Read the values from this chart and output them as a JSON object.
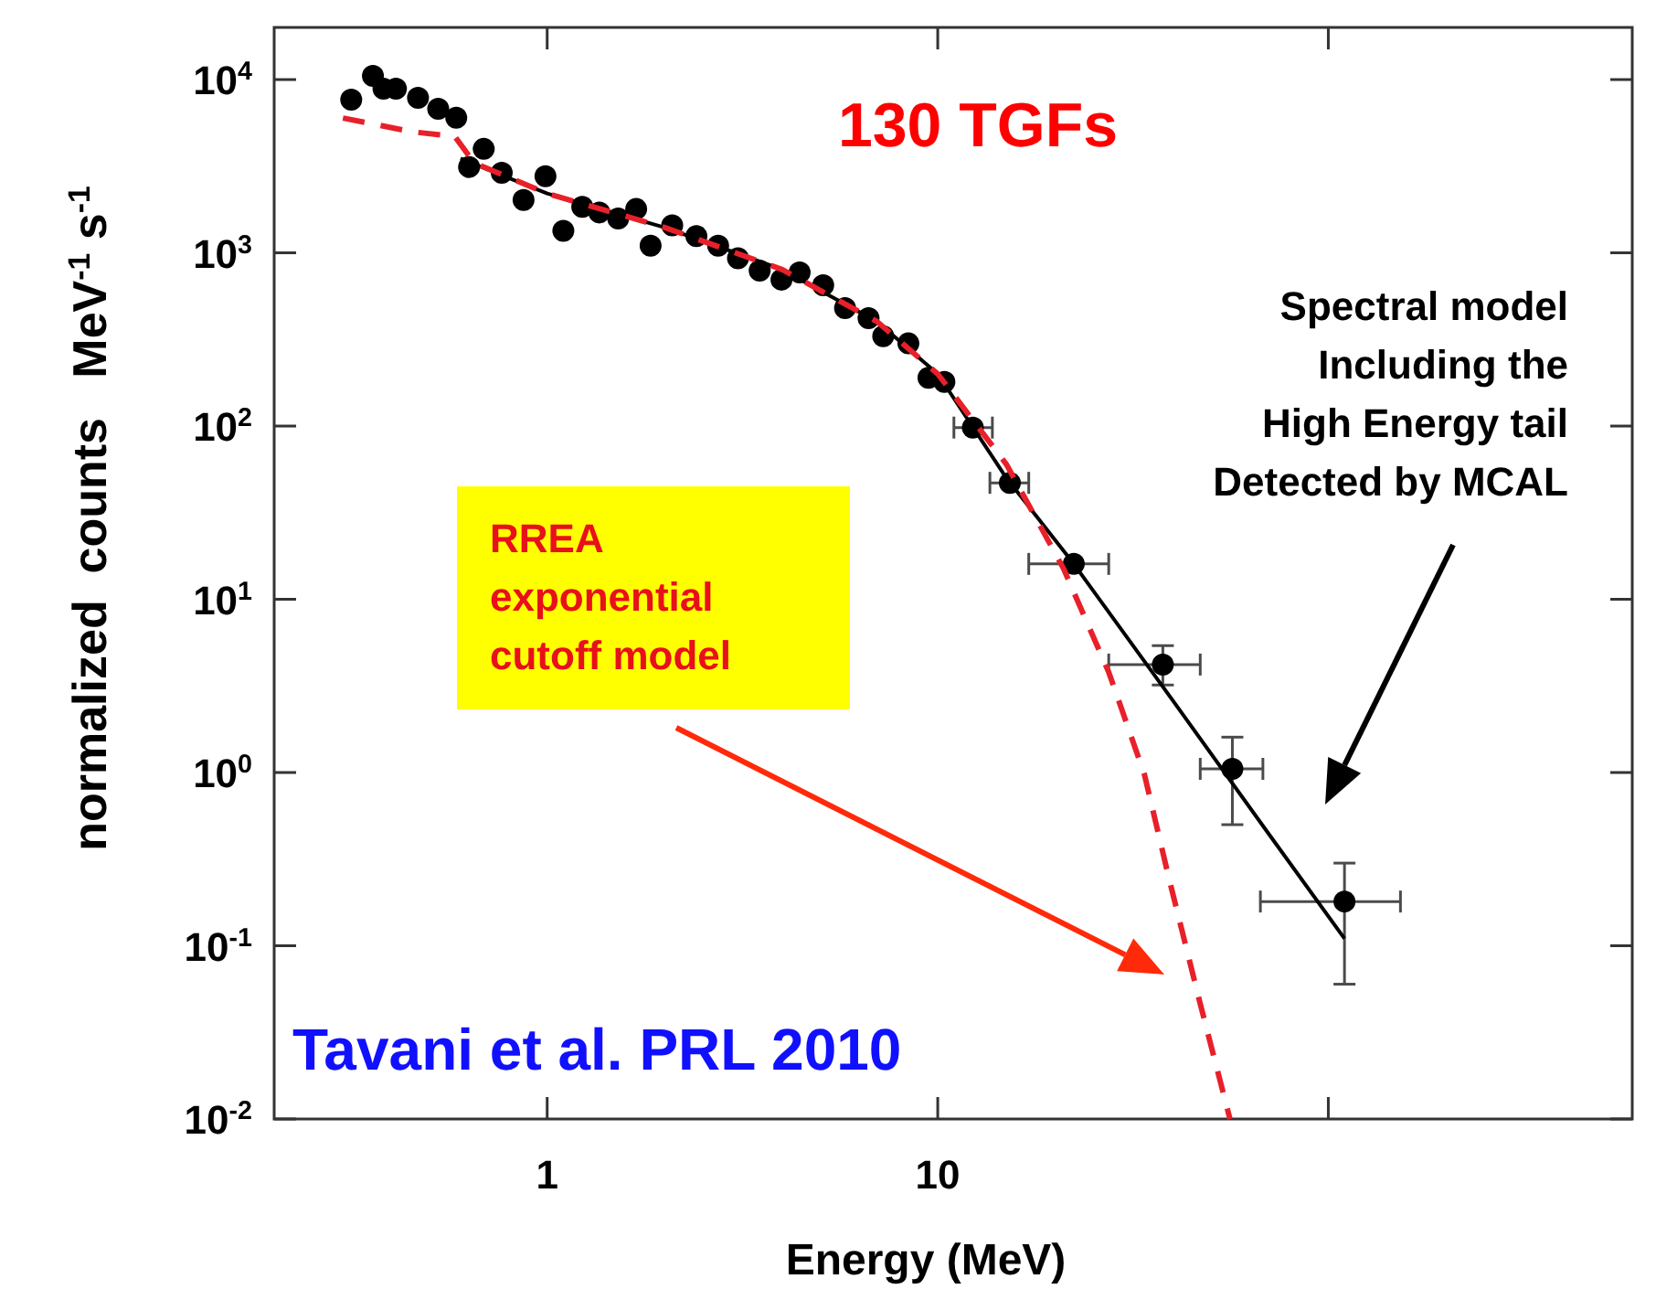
{
  "chart_data": {
    "type": "scatter",
    "xlabel": "Energy (MeV)",
    "ylabel": "normalized  counts   MeV$^{-1}$ s$^{-1}$",
    "log": "xy",
    "grid": false,
    "xlim": [
      0.2,
      600
    ],
    "xticks": [
      1,
      10,
      {
        "value": 100,
        "label": null
      }
    ],
    "ylim": [
      0.01,
      20000
    ],
    "yticks": [
      {
        "value": 0.01,
        "label": "10$^{-2}$"
      },
      {
        "value": 0.1,
        "label": "10$^{-1}$"
      },
      {
        "value": 1,
        "label": "10$^{0}$"
      },
      {
        "value": 10,
        "label": "10$^{1}$"
      },
      {
        "value": 100,
        "label": "10$^{2}$"
      },
      {
        "value": 1000,
        "label": "10$^{3}$"
      },
      {
        "value": 10000,
        "label": "10$^{4}$"
      }
    ],
    "series": [
      {
        "marker": "circle",
        "color": "#000000",
        "x": [
          0.315,
          0.358,
          0.381,
          0.41,
          0.467,
          0.526,
          0.585,
          0.631,
          0.688,
          0.765,
          0.87,
          0.99,
          1.1,
          1.23,
          1.36,
          1.52,
          1.69,
          1.84,
          2.09,
          2.41,
          2.74,
          3.08,
          3.5,
          3.98,
          4.43,
          5.09,
          5.79,
          6.65,
          7.25,
          8.41,
          9.47,
          10.4,
          12.3,
          15.3,
          22.3,
          37.7,
          56.8,
          110
        ],
        "values": [
          7660,
          10500,
          8860,
          8860,
          7850,
          6790,
          6020,
          3130,
          3980,
          2900,
          2020,
          2770,
          1340,
          1840,
          1710,
          1580,
          1790,
          1100,
          1440,
          1250,
          1100,
          930,
          790,
          700,
          770,
          650,
          480,
          420,
          330,
          300,
          190,
          180,
          98,
          47,
          16,
          4.2,
          1.05,
          0.18
        ],
        "errors": [
          null,
          null,
          null,
          null,
          null,
          null,
          null,
          null,
          null,
          null,
          null,
          null,
          null,
          null,
          null,
          null,
          null,
          null,
          null,
          null,
          null,
          null,
          null,
          null,
          null,
          null,
          null,
          null,
          null,
          null,
          null,
          null,
          null,
          null,
          null,
          [
            3.2,
            5.4
          ],
          [
            0.5,
            1.6
          ],
          [
            0.06,
            0.3
          ]
        ],
        "xerrors": [
          null,
          null,
          null,
          null,
          null,
          null,
          null,
          null,
          null,
          null,
          null,
          null,
          null,
          null,
          null,
          null,
          null,
          null,
          null,
          null,
          null,
          null,
          null,
          null,
          null,
          null,
          null,
          null,
          null,
          null,
          null,
          null,
          [
            11,
            13.8
          ],
          [
            13.6,
            17.1
          ],
          [
            17.1,
            27.4
          ],
          [
            27.4,
            47
          ],
          [
            47,
            68
          ],
          [
            67,
            153
          ]
        ]
      },
      {
        "type": "line",
        "color": "#000000",
        "line_style": "solid",
        "x": [
          0.6,
          1,
          2,
          4,
          7,
          10,
          15,
          22.3,
          40,
          70,
          110
        ],
        "values": [
          3500,
          2200,
          1400,
          800,
          400,
          200,
          50,
          16,
          2.6,
          0.45,
          0.11
        ]
      },
      {
        "type": "line",
        "color": "#e8202a",
        "line_style": "dashed",
        "x": [
          0.3,
          0.45,
          0.58,
          0.65,
          1,
          2,
          4,
          7,
          10,
          15,
          21,
          27.4,
          33.8,
          39,
          46.8,
          56
        ],
        "values": [
          6000,
          5000,
          4700,
          3300,
          2200,
          1400,
          800,
          400,
          200,
          60,
          15,
          3.8,
          0.98,
          0.25,
          0.048,
          0.01
        ]
      }
    ],
    "annotations": [
      "130 TGFs",
      "Spectral model\nIncluding the\nHigh Energy tail\nDetected by MCAL",
      "RREA\nexponential\ncutoff model",
      "Tavani et al. PRL 2010"
    ]
  }
}
